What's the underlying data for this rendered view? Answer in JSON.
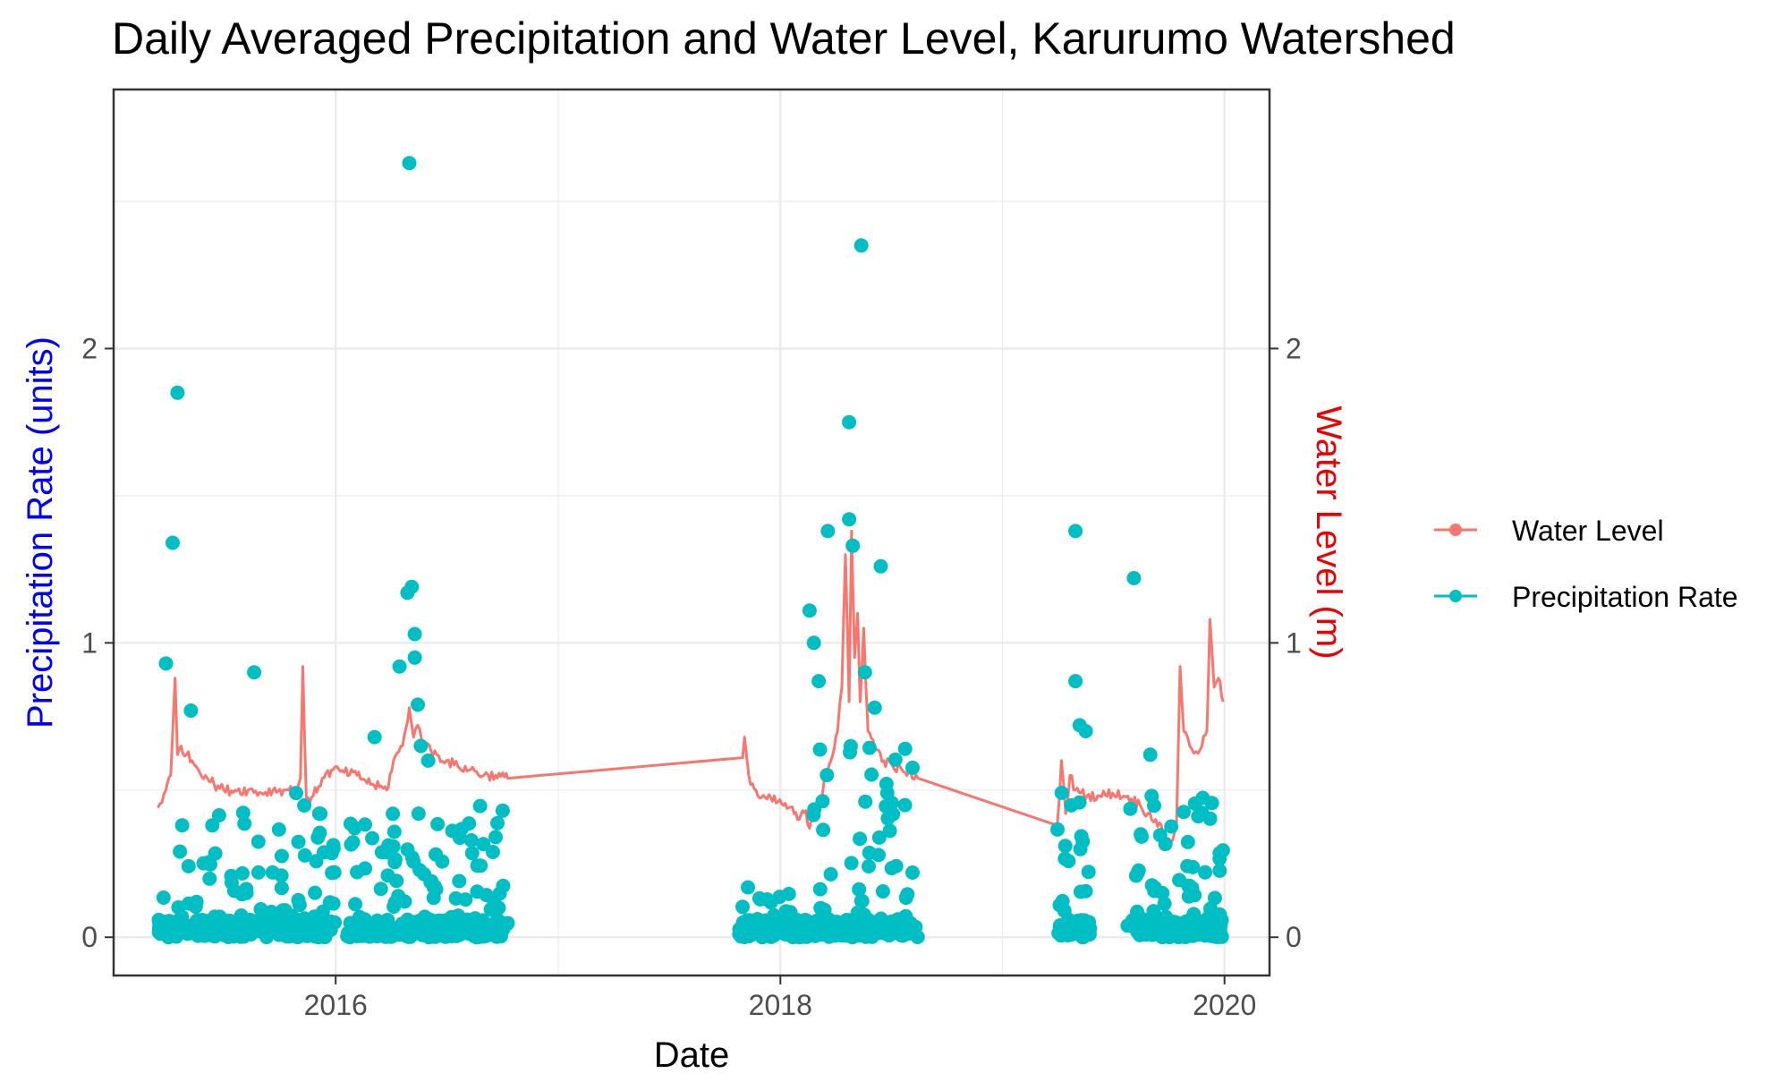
{
  "chart_data": {
    "type": "scatter",
    "title": "Daily Averaged Precipitation and Water Level, Karurumo Watershed",
    "xlabel": "Date",
    "ylabel": "Precipitation Rate (units)",
    "y2label": "Water Level (m)",
    "xlim": [
      "2015-01-01",
      "2020-03-15"
    ],
    "ylim": [
      -0.13,
      2.88
    ],
    "x_ticks": [
      "2016",
      "2018",
      "2020"
    ],
    "y_ticks": [
      "0",
      "1",
      "2"
    ],
    "y2_ticks": [
      "0",
      "1",
      "2"
    ],
    "grid": true,
    "legend": "right",
    "colors": {
      "water_level": "#F8766D",
      "precipitation": "#00BFC4",
      "ylabel": "#0000FF",
      "y2label": "#EE0000"
    },
    "series": [
      {
        "name": "Water Level",
        "kind": "line",
        "x": [
          "2015-03-15",
          "2015-03-28",
          "2015-04-05",
          "2015-04-12",
          "2015-04-16",
          "2015-04-22",
          "2015-05-01",
          "2015-05-10",
          "2015-05-20",
          "2015-06-01",
          "2015-06-15",
          "2015-07-01",
          "2015-07-20",
          "2015-08-10",
          "2015-09-01",
          "2015-09-20",
          "2015-10-10",
          "2015-10-28",
          "2015-11-04",
          "2015-11-08",
          "2015-11-14",
          "2015-11-25",
          "2015-12-10",
          "2015-12-28",
          "2016-01-15",
          "2016-02-05",
          "2016-03-01",
          "2016-03-25",
          "2016-04-05",
          "2016-04-20",
          "2016-05-01",
          "2016-05-08",
          "2016-05-15",
          "2016-05-28",
          "2016-06-15",
          "2016-07-01",
          "2016-07-20",
          "2016-08-10",
          "2016-09-01",
          "2016-09-20",
          "2016-10-10",
          "2017-10-31",
          "2017-11-03",
          "2017-11-10",
          "2017-11-25",
          "2017-12-10",
          "2017-12-28",
          "2018-01-15",
          "2018-02-01",
          "2018-02-12",
          "2018-02-18",
          "2018-02-25",
          "2018-03-05",
          "2018-03-15",
          "2018-03-25",
          "2018-04-05",
          "2018-04-12",
          "2018-04-18",
          "2018-04-24",
          "2018-04-28",
          "2018-05-03",
          "2018-05-08",
          "2018-05-12",
          "2018-05-18",
          "2018-05-25",
          "2018-06-05",
          "2018-06-20",
          "2018-07-05",
          "2018-07-25",
          "2018-08-15",
          "2019-04-01",
          "2019-04-08",
          "2019-04-15",
          "2019-04-22",
          "2019-05-01",
          "2019-05-10",
          "2019-05-20",
          "2019-06-10",
          "2019-07-01",
          "2019-07-20",
          "2019-08-01",
          "2019-08-15",
          "2019-08-28",
          "2019-09-10",
          "2019-09-25",
          "2019-10-05",
          "2019-10-14",
          "2019-10-20",
          "2019-10-26",
          "2019-11-05",
          "2019-11-15",
          "2019-11-25",
          "2019-12-03",
          "2019-12-08",
          "2019-12-15",
          "2019-12-22",
          "2019-12-30"
        ],
        "y": [
          0.44,
          0.5,
          0.55,
          0.88,
          0.62,
          0.65,
          0.62,
          0.6,
          0.57,
          0.55,
          0.52,
          0.5,
          0.5,
          0.5,
          0.49,
          0.5,
          0.5,
          0.5,
          0.54,
          0.92,
          0.45,
          0.48,
          0.54,
          0.57,
          0.56,
          0.55,
          0.52,
          0.5,
          0.6,
          0.65,
          0.78,
          0.68,
          0.72,
          0.65,
          0.62,
          0.6,
          0.58,
          0.57,
          0.55,
          0.55,
          0.54,
          0.61,
          0.68,
          0.55,
          0.48,
          0.47,
          0.46,
          0.44,
          0.4,
          0.43,
          0.37,
          0.45,
          0.42,
          0.55,
          0.6,
          0.7,
          0.85,
          1.3,
          0.8,
          1.38,
          0.95,
          1.1,
          0.8,
          1.05,
          0.7,
          0.65,
          0.6,
          0.58,
          0.56,
          0.54,
          0.38,
          0.6,
          0.42,
          0.55,
          0.5,
          0.49,
          0.48,
          0.48,
          0.49,
          0.48,
          0.47,
          0.45,
          0.42,
          0.4,
          0.34,
          0.32,
          0.38,
          0.92,
          0.7,
          0.65,
          0.63,
          0.65,
          0.7,
          1.08,
          0.85,
          0.88,
          0.8
        ]
      },
      {
        "name": "Precipitation Rate",
        "kind": "points",
        "x": [
          "2015-04-08",
          "2015-04-16",
          "2016-05-01",
          "2018-05-14",
          "2018-04-24",
          "2018-04-24",
          "2019-05-01",
          "2019-08-05",
          "2015-03-28",
          "2015-05-08",
          "2015-08-20",
          "2016-04-15",
          "2016-04-28",
          "2016-05-05",
          "2016-05-10",
          "2016-05-10",
          "2016-05-15",
          "2016-05-20",
          "2016-03-05",
          "2016-09-20",
          "2018-02-18",
          "2018-02-25",
          "2018-03-05",
          "2018-03-20",
          "2018-04-30",
          "2018-05-20",
          "2018-06-05",
          "2018-06-15",
          "2018-07-25",
          "2019-05-01",
          "2019-05-18",
          "2019-05-08",
          "2019-09-01",
          "2015-10-28",
          "2015-12-05",
          "2016-06-01"
        ],
        "y": [
          1.34,
          1.85,
          2.63,
          2.35,
          1.75,
          1.42,
          1.38,
          1.22,
          0.93,
          0.77,
          0.9,
          0.92,
          1.17,
          1.19,
          0.95,
          1.03,
          0.79,
          0.65,
          0.68,
          0.34,
          1.11,
          1.0,
          0.87,
          1.38,
          1.33,
          0.9,
          0.78,
          1.26,
          0.64,
          0.87,
          0.7,
          0.72,
          0.62,
          0.49,
          0.42,
          0.6
        ],
        "bands": [
          {
            "start": "2015-03-15",
            "end": "2015-12-31",
            "max": 0.45
          },
          {
            "start": "2016-01-20",
            "end": "2016-10-10",
            "max": 0.45
          },
          {
            "start": "2017-10-25",
            "end": "2018-02-20",
            "max": 0.18
          },
          {
            "start": "2018-02-20",
            "end": "2018-08-15",
            "max": 0.65
          },
          {
            "start": "2019-04-01",
            "end": "2019-05-25",
            "max": 0.5
          },
          {
            "start": "2019-07-25",
            "end": "2019-12-31",
            "max": 0.48
          }
        ]
      }
    ]
  }
}
